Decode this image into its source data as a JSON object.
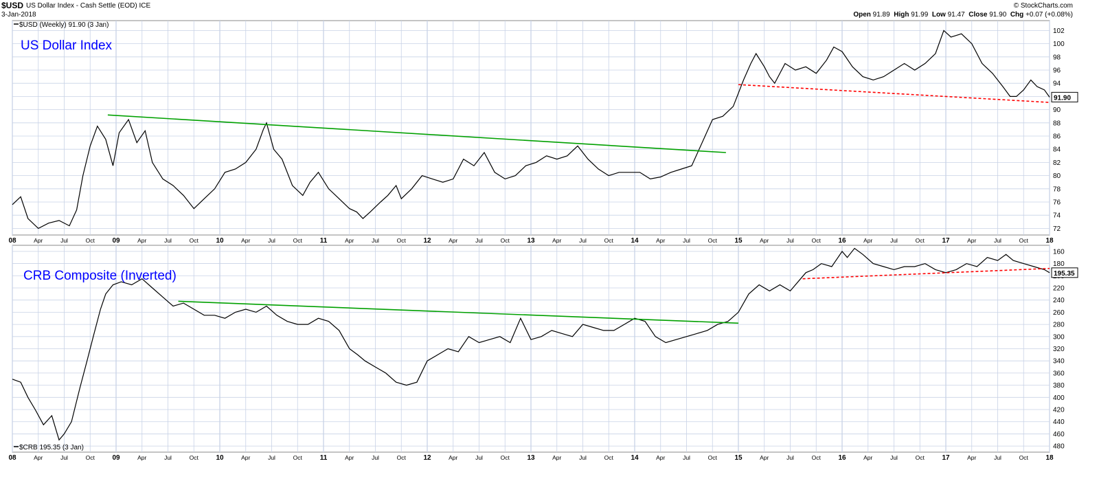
{
  "header": {
    "symbol": "$USD",
    "description": "US Dollar Index - Cash Settle (EOD) ICE",
    "date": "3-Jan-2018",
    "copyright": "© StockCharts.com",
    "open_label": "Open",
    "open": "91.89",
    "high_label": "High",
    "high": "91.99",
    "low_label": "Low",
    "low": "91.47",
    "close_label": "Close",
    "close": "91.90",
    "chg_label": "Chg",
    "chg": "+0.07 (+0.08%)"
  },
  "colors": {
    "price": "#000000",
    "uptrend": "#00a000",
    "dashed": "#ff0000",
    "title": "#0000ff",
    "grid": "#c8d2e6"
  },
  "x_axis_labels": [
    "08",
    "Apr",
    "Jul",
    "Oct",
    "09",
    "Apr",
    "Jul",
    "Oct",
    "10",
    "Apr",
    "Jul",
    "Oct",
    "11",
    "Apr",
    "Jul",
    "Oct",
    "12",
    "Apr",
    "Jul",
    "Oct",
    "13",
    "Apr",
    "Jul",
    "Oct",
    "14",
    "Apr",
    "Jul",
    "Oct",
    "15",
    "Apr",
    "Jul",
    "Oct",
    "16",
    "Apr",
    "Jul",
    "Oct",
    "17",
    "Apr",
    "Jul",
    "Oct",
    "18"
  ],
  "chart_data": [
    {
      "type": "line",
      "title": "US Dollar Index",
      "legend": "$USD (Weekly) 91.90 (3 Jan)",
      "last_value_label": "91.90",
      "x_range": [
        2008.0,
        2018.0
      ],
      "ylim": [
        71,
        103.5
      ],
      "y_ticks": [
        72,
        74,
        76,
        78,
        80,
        82,
        84,
        86,
        88,
        90,
        92,
        94,
        96,
        98,
        100,
        102
      ],
      "series": [
        {
          "x": [
            2008.0,
            2008.08,
            2008.15,
            2008.25,
            2008.35,
            2008.45,
            2008.55,
            2008.62,
            2008.68,
            2008.75,
            2008.82,
            2008.9,
            2008.97,
            2009.03,
            2009.12,
            2009.2,
            2009.28,
            2009.35,
            2009.45,
            2009.55,
            2009.65,
            2009.75,
            2009.85,
            2009.95,
            2010.05,
            2010.15,
            2010.25,
            2010.35,
            2010.42,
            2010.45,
            2010.52,
            2010.6,
            2010.7,
            2010.8,
            2010.87,
            2010.95,
            2011.05,
            2011.15,
            2011.25,
            2011.32,
            2011.38,
            2011.45,
            2011.55,
            2011.62,
            2011.7,
            2011.75,
            2011.85,
            2011.95,
            2012.05,
            2012.15,
            2012.25,
            2012.35,
            2012.45,
            2012.55,
            2012.65,
            2012.75,
            2012.85,
            2012.95,
            2013.05,
            2013.15,
            2013.25,
            2013.35,
            2013.45,
            2013.5,
            2013.55,
            2013.65,
            2013.75,
            2013.85,
            2013.95,
            2014.05,
            2014.15,
            2014.25,
            2014.35,
            2014.45,
            2014.55,
            2014.65,
            2014.75,
            2014.85,
            2014.95,
            2015.05,
            2015.12,
            2015.17,
            2015.25,
            2015.3,
            2015.35,
            2015.45,
            2015.55,
            2015.65,
            2015.75,
            2015.85,
            2015.92,
            2016.0,
            2016.1,
            2016.2,
            2016.3,
            2016.4,
            2016.5,
            2016.6,
            2016.7,
            2016.8,
            2016.9,
            2016.98,
            2017.05,
            2017.15,
            2017.25,
            2017.35,
            2017.45,
            2017.55,
            2017.62,
            2017.68,
            2017.75,
            2017.82,
            2017.88,
            2017.95,
            2018.0
          ],
          "y": [
            75.6,
            76.8,
            73.5,
            72.0,
            72.8,
            73.2,
            72.4,
            74.8,
            80.0,
            84.5,
            87.5,
            85.5,
            81.5,
            86.5,
            88.5,
            85.0,
            86.8,
            82.0,
            79.5,
            78.5,
            77.0,
            75.0,
            76.5,
            78.0,
            80.5,
            81.0,
            82.0,
            84.0,
            87.0,
            88.0,
            84.0,
            82.5,
            78.5,
            77.0,
            79.0,
            80.5,
            78.0,
            76.5,
            75.0,
            74.5,
            73.5,
            74.5,
            76.0,
            77.0,
            78.5,
            76.5,
            78.0,
            80.0,
            79.5,
            79.0,
            79.5,
            82.5,
            81.5,
            83.5,
            80.5,
            79.5,
            80.0,
            81.5,
            82.0,
            83.0,
            82.5,
            83.0,
            84.5,
            83.5,
            82.5,
            81.0,
            80.0,
            80.5,
            80.5,
            80.5,
            79.5,
            79.8,
            80.5,
            81.0,
            81.5,
            85.0,
            88.5,
            89.0,
            90.5,
            94.5,
            97.0,
            98.5,
            96.5,
            95.0,
            94.0,
            97.0,
            96.0,
            96.5,
            95.5,
            97.5,
            99.5,
            98.8,
            96.5,
            95.0,
            94.5,
            95.0,
            96.0,
            97.0,
            96.0,
            97.0,
            98.5,
            102.0,
            101.0,
            101.5,
            100.0,
            97.0,
            95.5,
            93.5,
            92.0,
            92.0,
            93.0,
            94.5,
            93.5,
            93.0,
            91.9
          ]
        }
      ],
      "trendlines": [
        {
          "style": "solid",
          "color": "green",
          "x": [
            2008.92,
            2014.88
          ],
          "y": [
            89.2,
            83.5
          ]
        },
        {
          "style": "dashed",
          "color": "red",
          "x": [
            2015.0,
            2018.0
          ],
          "y": [
            93.8,
            91.1
          ]
        }
      ]
    },
    {
      "type": "line",
      "title": "CRB Composite (Inverted)",
      "legend": "$CRB 195.35 (3 Jan)",
      "last_value_label": "195.35",
      "inverted": true,
      "x_range": [
        2008.0,
        2018.0
      ],
      "ylim": [
        150,
        490
      ],
      "y_ticks": [
        160,
        180,
        200,
        220,
        240,
        260,
        280,
        300,
        320,
        340,
        360,
        380,
        400,
        420,
        440,
        460,
        480
      ],
      "series": [
        {
          "x": [
            2008.0,
            2008.08,
            2008.15,
            2008.22,
            2008.3,
            2008.38,
            2008.45,
            2008.5,
            2008.57,
            2008.65,
            2008.72,
            2008.78,
            2008.85,
            2008.9,
            2008.97,
            2009.05,
            2009.15,
            2009.25,
            2009.35,
            2009.45,
            2009.55,
            2009.65,
            2009.75,
            2009.85,
            2009.95,
            2010.05,
            2010.15,
            2010.25,
            2010.35,
            2010.45,
            2010.55,
            2010.65,
            2010.75,
            2010.85,
            2010.95,
            2011.05,
            2011.15,
            2011.25,
            2011.33,
            2011.4,
            2011.5,
            2011.6,
            2011.7,
            2011.8,
            2011.9,
            2012.0,
            2012.1,
            2012.2,
            2012.3,
            2012.4,
            2012.5,
            2012.6,
            2012.7,
            2012.8,
            2012.9,
            2013.0,
            2013.1,
            2013.2,
            2013.3,
            2013.4,
            2013.5,
            2013.6,
            2013.7,
            2013.8,
            2013.9,
            2014.0,
            2014.1,
            2014.2,
            2014.3,
            2014.4,
            2014.5,
            2014.6,
            2014.7,
            2014.8,
            2014.9,
            2015.0,
            2015.1,
            2015.2,
            2015.3,
            2015.4,
            2015.5,
            2015.6,
            2015.65,
            2015.72,
            2015.8,
            2015.9,
            2016.0,
            2016.05,
            2016.12,
            2016.2,
            2016.3,
            2016.4,
            2016.5,
            2016.6,
            2016.7,
            2016.8,
            2016.9,
            2017.0,
            2017.1,
            2017.2,
            2017.3,
            2017.4,
            2017.5,
            2017.58,
            2017.65,
            2017.75,
            2017.85,
            2017.95,
            2018.0
          ],
          "y": [
            370,
            375,
            400,
            420,
            445,
            430,
            470,
            460,
            440,
            385,
            340,
            300,
            255,
            230,
            215,
            210,
            215,
            205,
            220,
            235,
            250,
            245,
            255,
            265,
            265,
            270,
            260,
            255,
            260,
            250,
            265,
            275,
            280,
            280,
            270,
            275,
            290,
            320,
            330,
            340,
            350,
            360,
            375,
            380,
            375,
            340,
            330,
            320,
            325,
            300,
            310,
            305,
            300,
            310,
            270,
            305,
            300,
            290,
            295,
            300,
            280,
            285,
            290,
            290,
            280,
            270,
            275,
            300,
            310,
            305,
            300,
            295,
            290,
            280,
            275,
            260,
            230,
            215,
            225,
            215,
            225,
            205,
            195,
            190,
            180,
            185,
            160,
            170,
            155,
            165,
            180,
            185,
            190,
            185,
            185,
            180,
            190,
            195,
            190,
            180,
            185,
            170,
            175,
            165,
            175,
            180,
            185,
            190,
            195
          ],
          "last": 195.35
        }
      ],
      "trendlines": [
        {
          "style": "solid",
          "color": "green",
          "x": [
            2009.6,
            2015.0
          ],
          "y": [
            242,
            278
          ]
        },
        {
          "style": "dashed",
          "color": "red",
          "x": [
            2015.62,
            2018.0
          ],
          "y": [
            205,
            188
          ]
        }
      ]
    }
  ]
}
